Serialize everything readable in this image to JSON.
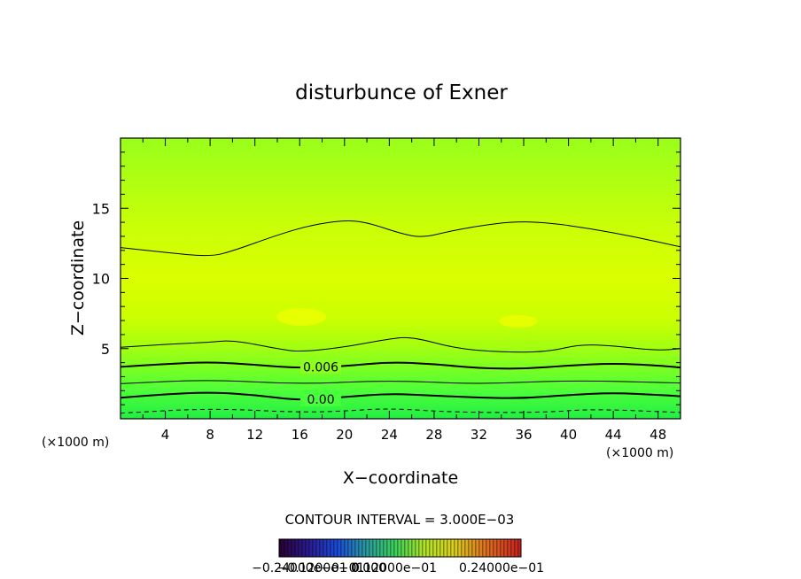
{
  "chart_data": {
    "type": "contour",
    "title": "disturbunce of Exner",
    "xlabel": "X−coordinate",
    "ylabel": "Z−coordinate",
    "x_unit": "(×1000 m)",
    "x_unit_right": "(×1000 m)",
    "xlim": [
      0,
      50
    ],
    "ylim": [
      0,
      20
    ],
    "x_ticks": [
      4,
      8,
      12,
      16,
      20,
      24,
      28,
      32,
      36,
      40,
      44,
      48
    ],
    "y_ticks": [
      5,
      10,
      15
    ],
    "contour_interval_text": "CONTOUR INTERVAL = 3.000E−03",
    "contour_labels": [
      {
        "text": "0.006",
        "x": 16.3,
        "z": 3.7
      },
      {
        "text": "0.00",
        "x": 16.3,
        "z": 1.4
      }
    ],
    "colorbar_labels": [
      "−0.24000e−01",
      "−0.1200e−01",
      "0.000",
      "0.12000e−01",
      "0.24000e−01"
    ],
    "contours": [
      {
        "level": 0.0,
        "style": "dashed",
        "points": [
          [
            0,
            0.4
          ],
          [
            8,
            0.75
          ],
          [
            16,
            0.45
          ],
          [
            20,
            0.55
          ],
          [
            24,
            0.75
          ],
          [
            30,
            0.45
          ],
          [
            38,
            0.45
          ],
          [
            42,
            0.7
          ],
          [
            50,
            0.45
          ]
        ]
      },
      {
        "level": 0.003,
        "style": "thick",
        "points": [
          [
            0,
            1.5
          ],
          [
            4,
            1.75
          ],
          [
            8,
            1.9
          ],
          [
            12,
            1.7
          ],
          [
            16,
            1.3
          ],
          [
            20,
            1.55
          ],
          [
            24,
            1.8
          ],
          [
            28,
            1.65
          ],
          [
            32,
            1.5
          ],
          [
            36,
            1.45
          ],
          [
            40,
            1.7
          ],
          [
            44,
            1.85
          ],
          [
            48,
            1.7
          ],
          [
            50,
            1.6
          ]
        ]
      },
      {
        "level": 0.0045,
        "style": "thin",
        "points": [
          [
            0,
            2.5
          ],
          [
            8,
            2.8
          ],
          [
            16,
            2.45
          ],
          [
            24,
            2.75
          ],
          [
            32,
            2.45
          ],
          [
            40,
            2.75
          ],
          [
            50,
            2.55
          ]
        ]
      },
      {
        "level": 0.006,
        "style": "thick",
        "points": [
          [
            0,
            3.7
          ],
          [
            4,
            3.9
          ],
          [
            8,
            4.05
          ],
          [
            12,
            3.85
          ],
          [
            16,
            3.6
          ],
          [
            20,
            3.75
          ],
          [
            24,
            4.05
          ],
          [
            28,
            3.9
          ],
          [
            32,
            3.6
          ],
          [
            36,
            3.55
          ],
          [
            40,
            3.8
          ],
          [
            44,
            3.95
          ],
          [
            48,
            3.8
          ],
          [
            50,
            3.65
          ]
        ]
      },
      {
        "level": 0.009,
        "style": "thin",
        "points": [
          [
            0,
            5.1
          ],
          [
            4,
            5.3
          ],
          [
            8,
            5.45
          ],
          [
            10,
            5.6
          ],
          [
            14,
            5.0
          ],
          [
            16,
            4.75
          ],
          [
            20,
            5.1
          ],
          [
            24,
            5.7
          ],
          [
            26,
            5.85
          ],
          [
            30,
            5.0
          ],
          [
            34,
            4.75
          ],
          [
            38,
            4.75
          ],
          [
            41,
            5.3
          ],
          [
            44,
            5.2
          ],
          [
            48,
            4.85
          ],
          [
            50,
            5.0
          ]
        ]
      },
      {
        "level": 0.009,
        "style": "thin",
        "points": [
          [
            0,
            12.2
          ],
          [
            4,
            11.85
          ],
          [
            8,
            11.55
          ],
          [
            10,
            11.95
          ],
          [
            14,
            13.1
          ],
          [
            17,
            13.8
          ],
          [
            20,
            14.15
          ],
          [
            22,
            14.0
          ],
          [
            25,
            13.2
          ],
          [
            27,
            12.9
          ],
          [
            29,
            13.3
          ],
          [
            32,
            13.75
          ],
          [
            35,
            14.05
          ],
          [
            38,
            14.0
          ],
          [
            42,
            13.55
          ],
          [
            46,
            12.95
          ],
          [
            50,
            12.25
          ]
        ]
      }
    ]
  }
}
